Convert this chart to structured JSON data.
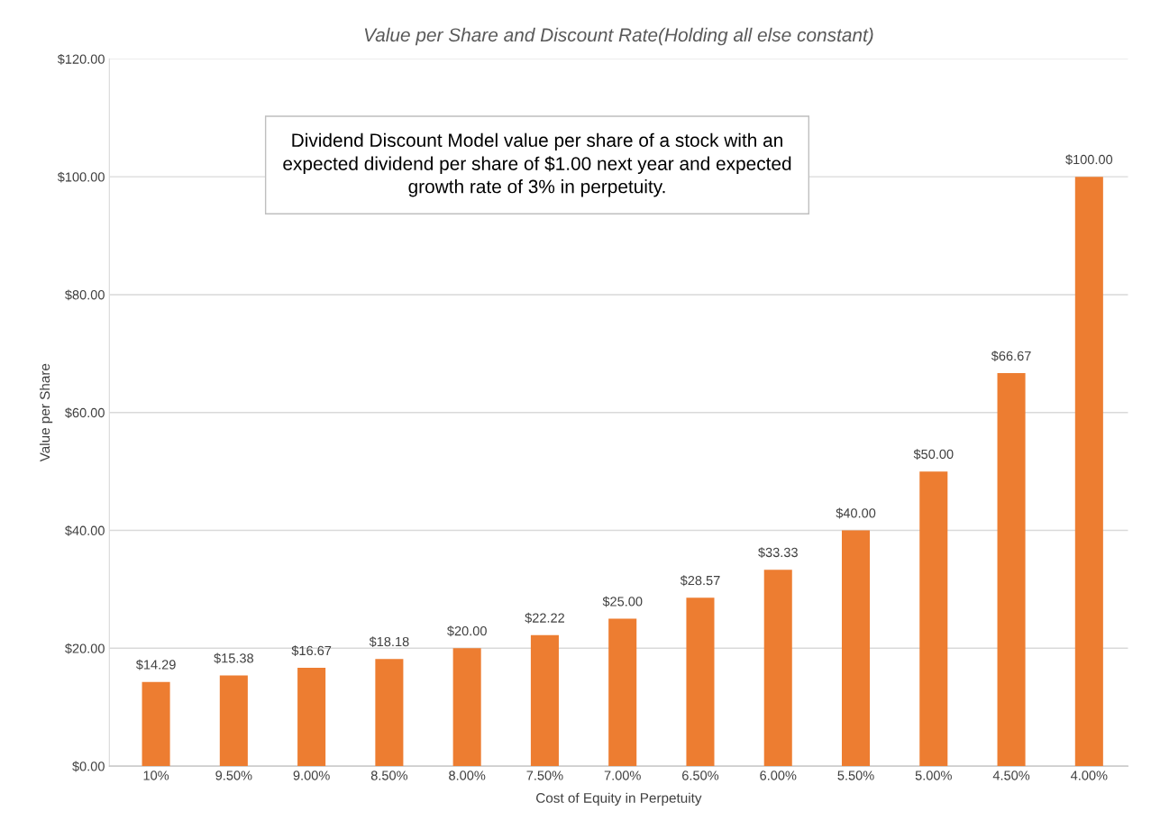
{
  "chart_data": {
    "type": "bar",
    "title": "Value per Share and Discount Rate(Holding all else constant)",
    "xlabel": "Cost of Equity in Perpetuity",
    "ylabel": "Value per Share",
    "categories": [
      "10%",
      "9.50%",
      "9.00%",
      "8.50%",
      "8.00%",
      "7.50%",
      "7.00%",
      "6.50%",
      "6.00%",
      "5.50%",
      "5.00%",
      "4.50%",
      "4.00%"
    ],
    "values": [
      14.29,
      15.38,
      16.67,
      18.18,
      20.0,
      22.22,
      25.0,
      28.57,
      33.33,
      40.0,
      50.0,
      66.67,
      100.0
    ],
    "value_labels": [
      "$14.29",
      "$15.38",
      "$16.67",
      "$18.18",
      "$20.00",
      "$22.22",
      "$25.00",
      "$28.57",
      "$33.33",
      "$40.00",
      "$50.00",
      "$66.67",
      "$100.00"
    ],
    "color": "#ed7d31",
    "ylim": [
      0,
      120
    ],
    "yticks": [
      {
        "value": 0,
        "label": "$0.00"
      },
      {
        "value": 20,
        "label": "$20.00"
      },
      {
        "value": 40,
        "label": "$40.00"
      },
      {
        "value": 60,
        "label": "$60.00"
      },
      {
        "value": 80,
        "label": "$80.00"
      },
      {
        "value": 100,
        "label": "$100.00"
      },
      {
        "value": 120,
        "label": "$120.00"
      }
    ],
    "grid": "y",
    "legend": false,
    "annotations": [
      "Dividend Discount Model value per share of a stock with an\nexpected dividend per share of $1.00 next year and expected\ngrowth rate of 3% in perpetuity."
    ]
  }
}
